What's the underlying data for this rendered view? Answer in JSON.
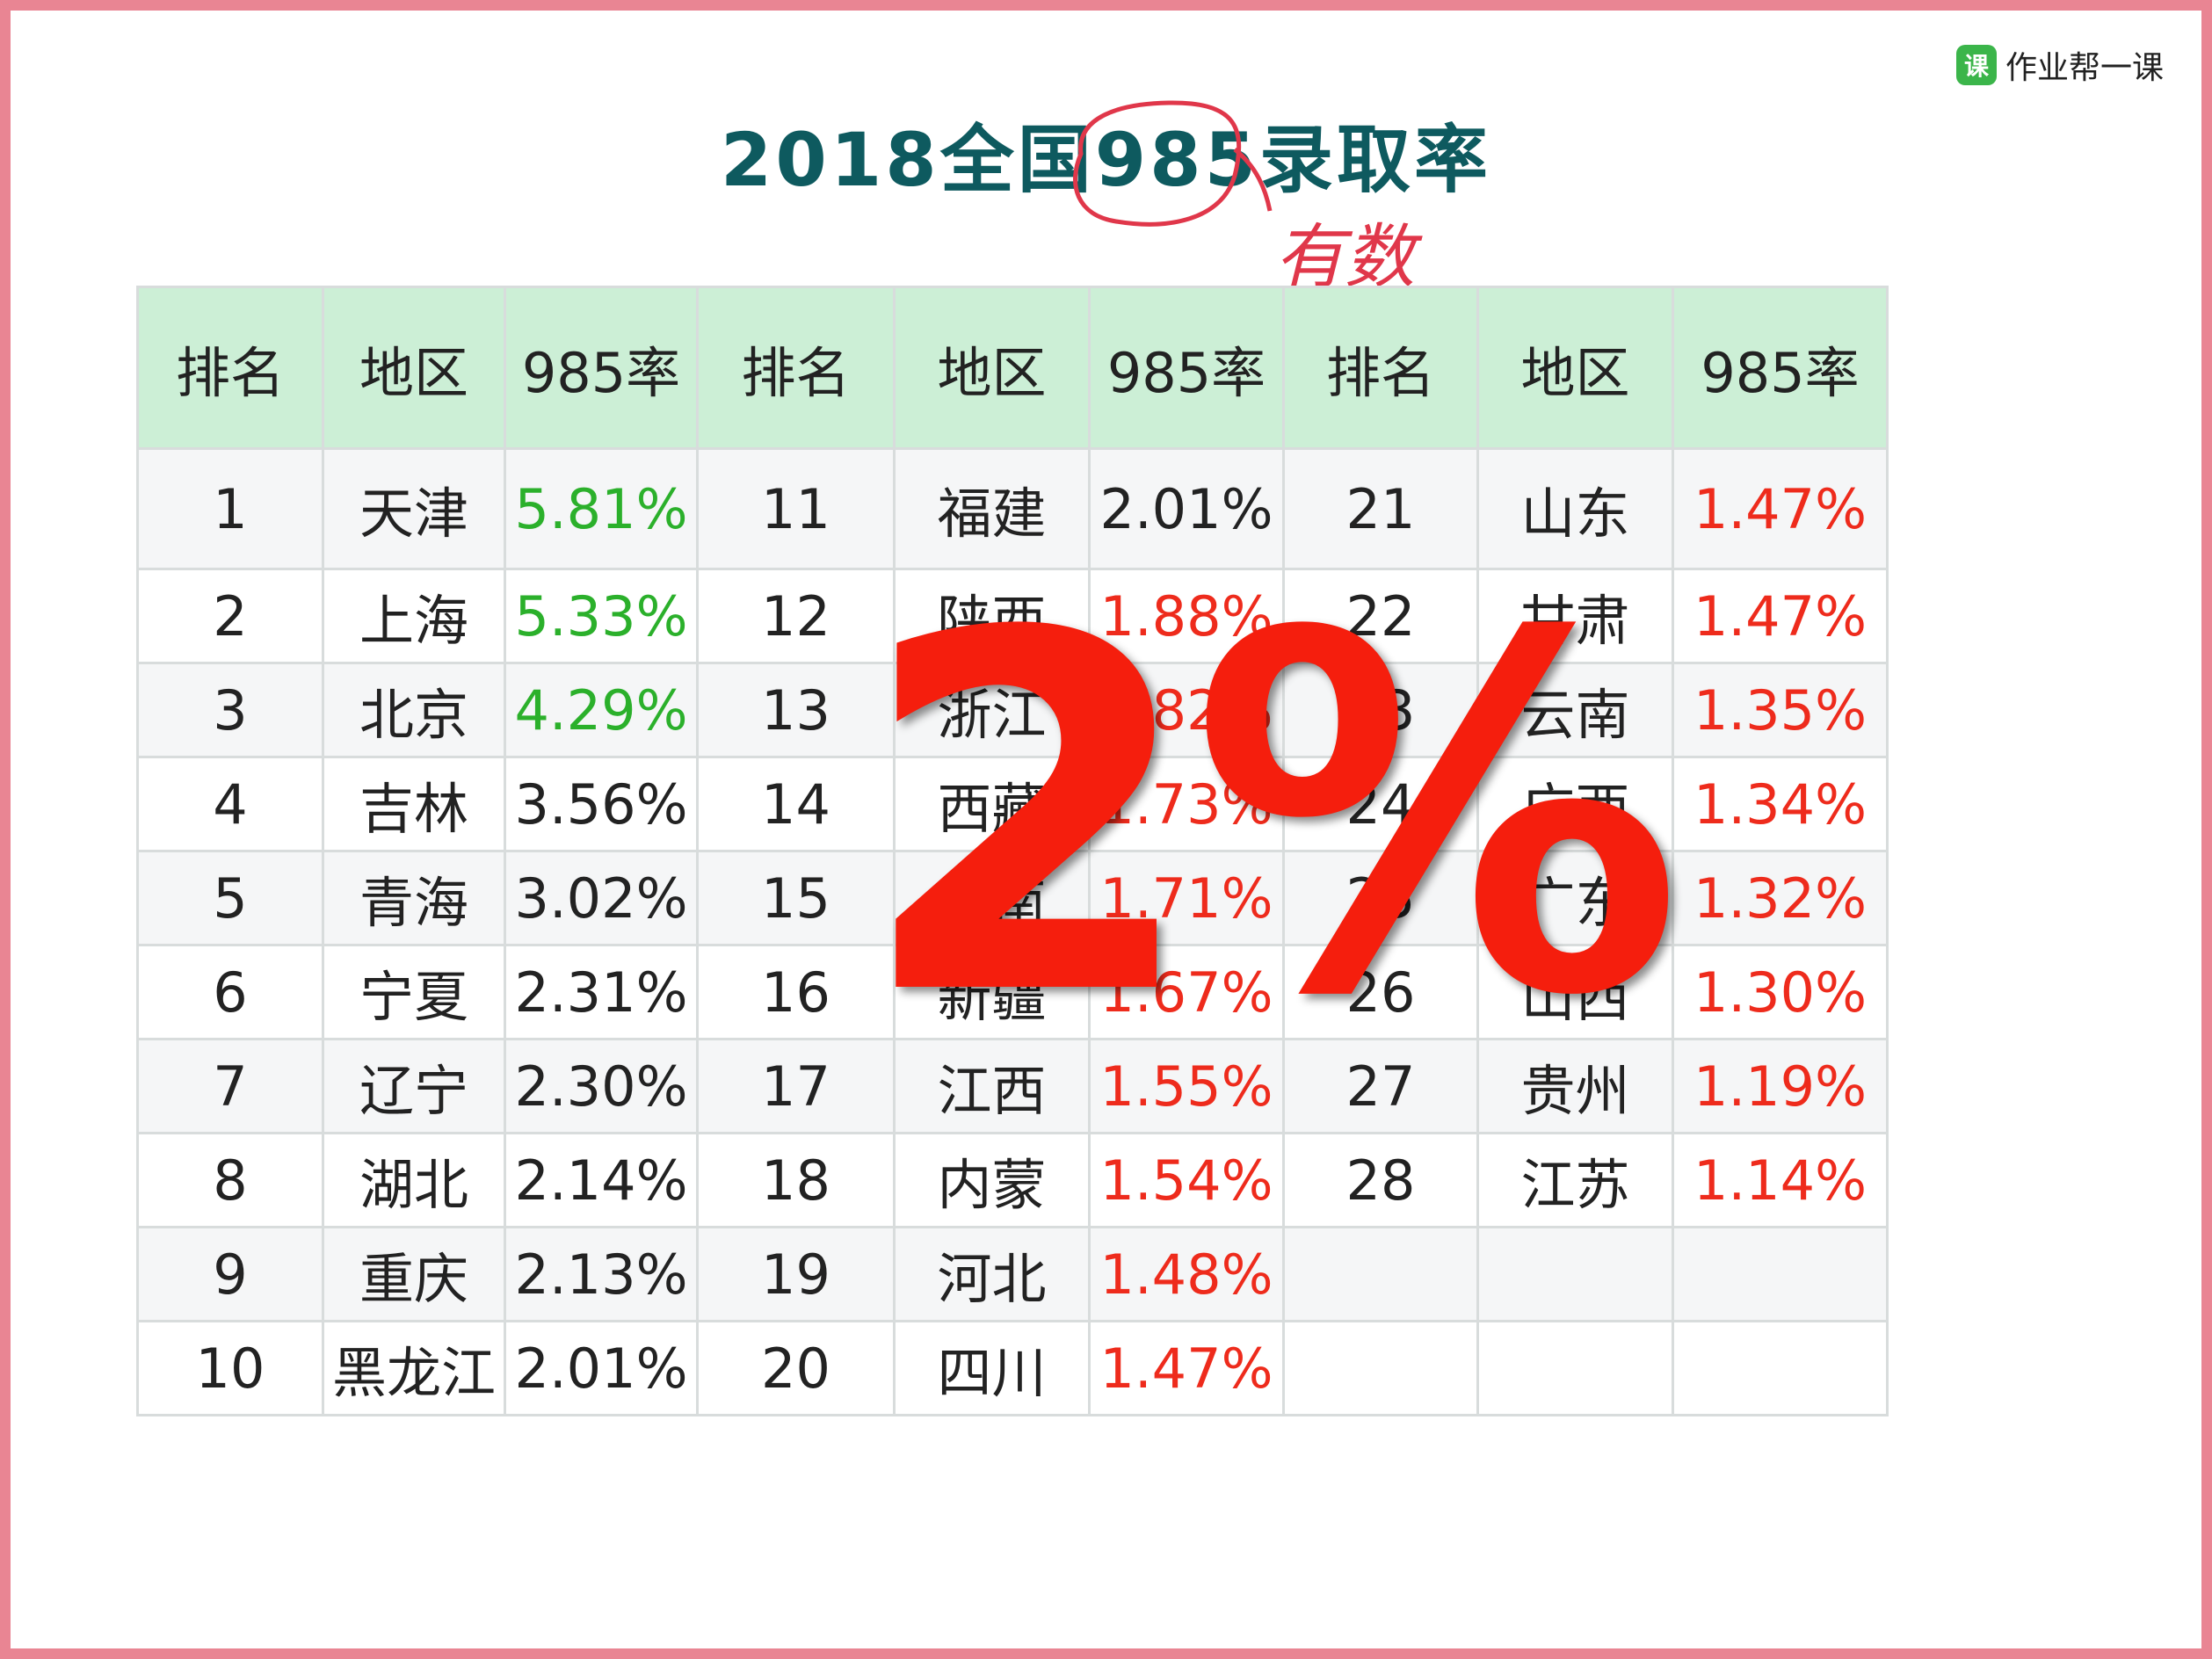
{
  "brand": {
    "icon": "课",
    "name": "作业帮一课"
  },
  "title": "2018全国985录取率",
  "handwritten_note": "有数",
  "overlay_text": "2%",
  "table": {
    "headers": [
      "排名",
      "地区",
      "985率",
      "排名",
      "地区",
      "985率",
      "排名",
      "地区",
      "985率"
    ],
    "rows": [
      [
        {
          "rank": "1",
          "region": "天津",
          "rate": "5.81%",
          "color": "green"
        },
        {
          "rank": "11",
          "region": "福建",
          "rate": "2.01%",
          "color": "black"
        },
        {
          "rank": "21",
          "region": "山东",
          "rate": "1.47%",
          "color": "red"
        }
      ],
      [
        {
          "rank": "2",
          "region": "上海",
          "rate": "5.33%",
          "color": "green"
        },
        {
          "rank": "12",
          "region": "陕西",
          "rate": "1.88%",
          "color": "red"
        },
        {
          "rank": "22",
          "region": "甘肃",
          "rate": "1.47%",
          "color": "red"
        }
      ],
      [
        {
          "rank": "3",
          "region": "北京",
          "rate": "4.29%",
          "color": "green"
        },
        {
          "rank": "13",
          "region": "浙江",
          "rate": "1.82%",
          "color": "red"
        },
        {
          "rank": "23",
          "region": "云南",
          "rate": "1.35%",
          "color": "red"
        }
      ],
      [
        {
          "rank": "4",
          "region": "吉林",
          "rate": "3.56%",
          "color": "black"
        },
        {
          "rank": "14",
          "region": "西藏",
          "rate": "1.73%",
          "color": "red"
        },
        {
          "rank": "24",
          "region": "广西",
          "rate": "1.34%",
          "color": "red"
        }
      ],
      [
        {
          "rank": "5",
          "region": "青海",
          "rate": "3.02%",
          "color": "black"
        },
        {
          "rank": "15",
          "region": "湖南",
          "rate": "1.71%",
          "color": "red"
        },
        {
          "rank": "25",
          "region": "广东",
          "rate": "1.32%",
          "color": "red"
        }
      ],
      [
        {
          "rank": "6",
          "region": "宁夏",
          "rate": "2.31%",
          "color": "black"
        },
        {
          "rank": "16",
          "region": "新疆",
          "rate": "1.67%",
          "color": "red"
        },
        {
          "rank": "26",
          "region": "山西",
          "rate": "1.30%",
          "color": "red"
        }
      ],
      [
        {
          "rank": "7",
          "region": "辽宁",
          "rate": "2.30%",
          "color": "black"
        },
        {
          "rank": "17",
          "region": "江西",
          "rate": "1.55%",
          "color": "red"
        },
        {
          "rank": "27",
          "region": "贵州",
          "rate": "1.19%",
          "color": "red"
        }
      ],
      [
        {
          "rank": "8",
          "region": "湖北",
          "rate": "2.14%",
          "color": "black"
        },
        {
          "rank": "18",
          "region": "内蒙",
          "rate": "1.54%",
          "color": "red"
        },
        {
          "rank": "28",
          "region": "江苏",
          "rate": "1.14%",
          "color": "red"
        }
      ],
      [
        {
          "rank": "9",
          "region": "重庆",
          "rate": "2.13%",
          "color": "black"
        },
        {
          "rank": "19",
          "region": "河北",
          "rate": "1.48%",
          "color": "red"
        },
        {
          "rank": "",
          "region": "",
          "rate": "",
          "color": "black"
        }
      ],
      [
        {
          "rank": "10",
          "region": "黑龙江",
          "rate": "2.01%",
          "color": "black"
        },
        {
          "rank": "20",
          "region": "四川",
          "rate": "1.47%",
          "color": "red"
        },
        {
          "rank": "",
          "region": "",
          "rate": "",
          "color": "black"
        }
      ]
    ]
  },
  "colors": {
    "border": "#e98593",
    "title": "#0e5a5f",
    "header_bg": "#ccefd6",
    "green": "#2bb02b",
    "red": "#ee2b1c",
    "overlay": "#f51e0d",
    "annotation": "#e0374a"
  }
}
